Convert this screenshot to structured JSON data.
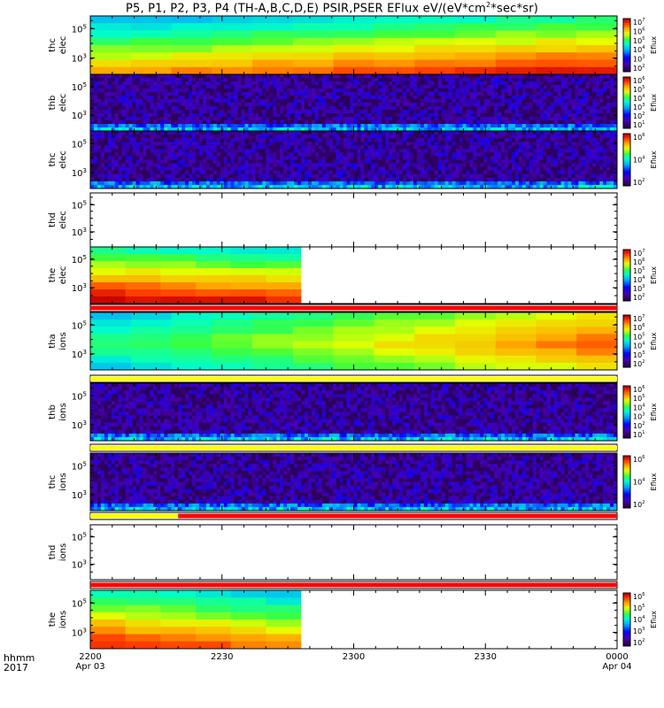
{
  "title": "P5, P1, P2, P3, P4 (TH-A,B,C,D,E) PSIR,PSER EFlux eV/(eV*cm",
  "title_sup": "2",
  "title_tail": "*sec*sr)",
  "footer": {
    "line1": "hhmm",
    "line2": "2017"
  },
  "time_ticks": [
    {
      "label": "2200",
      "sublabel": "Apr 03"
    },
    {
      "label": "2230",
      "sublabel": ""
    },
    {
      "label": "2300",
      "sublabel": ""
    },
    {
      "label": "2330",
      "sublabel": ""
    },
    {
      "label": "0000",
      "sublabel": "Apr 04"
    }
  ],
  "colorbar_label": "Eflux",
  "chart_data": {
    "type": "heatmap",
    "x_range": [
      "2017-04-03 22:00",
      "2017-04-04 00:00"
    ],
    "panels": [
      {
        "probe_label": [
          "thc",
          "elec"
        ],
        "y_ticks": [
          "10^5",
          "10^3"
        ],
        "pattern": "elec_full",
        "cbar_ticks": [
          "10^7",
          "10^6",
          "10^5",
          "10^4",
          "10^3",
          "10^2"
        ],
        "bar": null
      },
      {
        "probe_label": [
          "thb",
          "elec"
        ],
        "y_ticks": [
          "10^5",
          "10^3"
        ],
        "pattern": "noise",
        "cbar_ticks": [
          "10^6",
          "10^5",
          "10^4",
          "10^3",
          "10^2",
          "10^1"
        ],
        "bar": null
      },
      {
        "probe_label": [
          "thc",
          "elec"
        ],
        "y_ticks": [
          "10^5",
          "10^3"
        ],
        "pattern": "noise",
        "cbar_ticks": [
          "10^6",
          "10^4",
          "10^2"
        ],
        "bar": null
      },
      {
        "probe_label": [
          "thd",
          "elec"
        ],
        "y_ticks": [
          "10^5",
          "10^3"
        ],
        "pattern": "empty",
        "cbar_ticks": [],
        "bar": null
      },
      {
        "probe_label": [
          "the",
          "elec"
        ],
        "y_ticks": [
          "10^5",
          "10^3"
        ],
        "pattern": "elec_partial",
        "cbar_ticks": [
          "10^7",
          "10^6",
          "10^5",
          "10^4",
          "10^3",
          "10^2"
        ],
        "bar": {
          "segments": [
            {
              "start": "22:00",
              "end": "00:00",
              "color": "#ff0000"
            }
          ]
        }
      },
      {
        "probe_label": [
          "tha",
          "ions"
        ],
        "y_ticks": [
          "10^5",
          "10^3"
        ],
        "pattern": "ions_full",
        "cbar_ticks": [
          "10^7",
          "10^6",
          "10^5",
          "10^4",
          "10^3",
          "10^2"
        ],
        "bar": {
          "segments": [
            {
              "start": "22:00",
              "end": "00:00",
              "color": "#ffff00"
            }
          ]
        }
      },
      {
        "probe_label": [
          "thb",
          "ions"
        ],
        "y_ticks": [
          "10^5",
          "10^3"
        ],
        "pattern": "noise",
        "cbar_ticks": [
          "10^6",
          "10^5",
          "10^4",
          "10^3",
          "10^2",
          "10^1"
        ],
        "bar": {
          "segments": [
            {
              "start": "22:00",
              "end": "00:00",
              "color": "#ffff00"
            }
          ]
        }
      },
      {
        "probe_label": [
          "thc",
          "ions"
        ],
        "y_ticks": [
          "10^5",
          "10^3"
        ],
        "pattern": "noise",
        "cbar_ticks": [
          "10^6",
          "10^4",
          "10^2"
        ],
        "bar": {
          "segments": [
            {
              "start": "22:00",
              "end": "22:20",
              "color": "#ffff00"
            },
            {
              "start": "22:20",
              "end": "00:00",
              "color": "#ff0000"
            }
          ]
        }
      },
      {
        "probe_label": [
          "thd",
          "ions"
        ],
        "y_ticks": [
          "10^5",
          "10^3"
        ],
        "pattern": "empty",
        "cbar_ticks": [],
        "bar": {
          "segments": [
            {
              "start": "22:00",
              "end": "00:00",
              "color": "#ff0000"
            }
          ]
        }
      },
      {
        "probe_label": [
          "the",
          "ions"
        ],
        "y_ticks": [
          "10^5",
          "10^3"
        ],
        "pattern": "ions_partial",
        "cbar_ticks": [
          "10^6",
          "10^5",
          "10^4",
          "10^3",
          "10^2"
        ],
        "bar": null
      }
    ]
  }
}
